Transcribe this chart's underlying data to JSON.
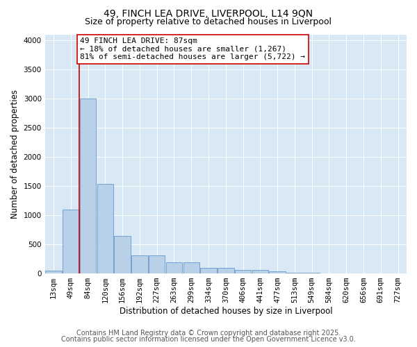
{
  "title1": "49, FINCH LEA DRIVE, LIVERPOOL, L14 9QN",
  "title2": "Size of property relative to detached houses in Liverpool",
  "xlabel": "Distribution of detached houses by size in Liverpool",
  "ylabel": "Number of detached properties",
  "footnote1": "Contains HM Land Registry data © Crown copyright and database right 2025.",
  "footnote2": "Contains public sector information licensed under the Open Government Licence v3.0.",
  "annotation_line1": "49 FINCH LEA DRIVE: 87sqm",
  "annotation_line2": "← 18% of detached houses are smaller (1,267)",
  "annotation_line3": "81% of semi-detached houses are larger (5,722) →",
  "categories": [
    "13sqm",
    "49sqm",
    "84sqm",
    "120sqm",
    "156sqm",
    "192sqm",
    "227sqm",
    "263sqm",
    "299sqm",
    "334sqm",
    "370sqm",
    "406sqm",
    "441sqm",
    "477sqm",
    "513sqm",
    "549sqm",
    "584sqm",
    "620sqm",
    "656sqm",
    "691sqm",
    "727sqm"
  ],
  "values": [
    50,
    1100,
    3000,
    1540,
    640,
    310,
    310,
    190,
    190,
    100,
    100,
    60,
    55,
    35,
    10,
    10,
    5,
    5,
    3,
    3,
    3
  ],
  "bar_color": "#b8d0e8",
  "bar_edge_color": "#6699cc",
  "vline_color": "#cc0000",
  "vline_bar_index": 2,
  "annotation_box_edge_color": "#cc0000",
  "plot_bg_color": "#d8e8f4",
  "grid_color": "#c0d4e8",
  "ylim": [
    0,
    4100
  ],
  "yticks": [
    0,
    500,
    1000,
    1500,
    2000,
    2500,
    3000,
    3500,
    4000
  ],
  "title_fontsize": 10,
  "subtitle_fontsize": 9,
  "axis_label_fontsize": 8.5,
  "tick_fontsize": 7.5,
  "annotation_fontsize": 8,
  "footnote_fontsize": 7
}
